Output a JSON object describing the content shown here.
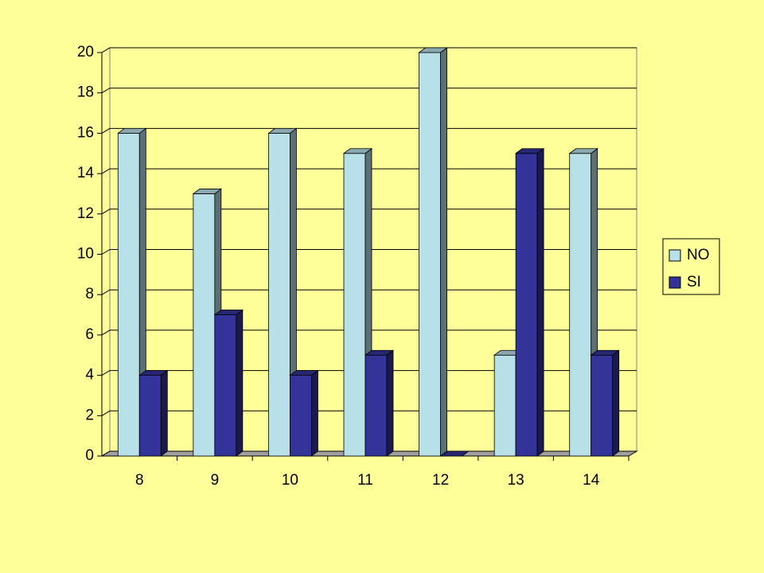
{
  "chart_data": {
    "type": "bar3d",
    "categories": [
      "8",
      "9",
      "10",
      "11",
      "12",
      "13",
      "14"
    ],
    "series": [
      {
        "name": "NO",
        "color": "#b8e0e8",
        "values": [
          16,
          13,
          16,
          15,
          20,
          5,
          15
        ]
      },
      {
        "name": "SI",
        "color": "#333399",
        "values": [
          4,
          7,
          4,
          5,
          0,
          15,
          5
        ]
      }
    ],
    "ylim": [
      0,
      20
    ],
    "yticks": [
      0,
      2,
      4,
      6,
      8,
      10,
      12,
      14,
      16,
      18,
      20
    ],
    "grid": true,
    "legend": "right"
  }
}
